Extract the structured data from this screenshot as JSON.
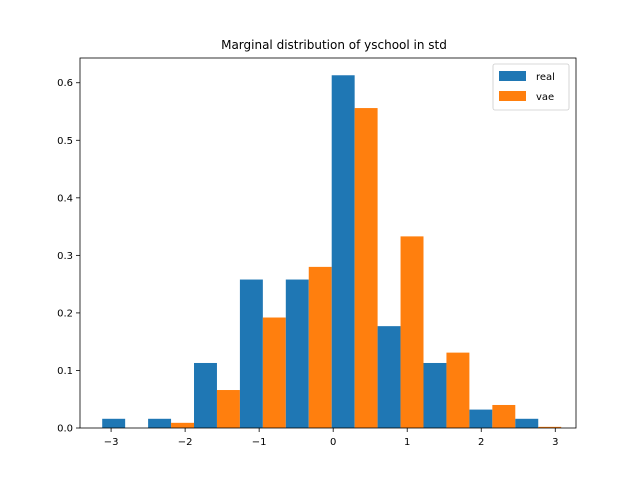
{
  "chart_data": {
    "type": "bar",
    "title": "Marginal distribution of yschool in std",
    "xlabel": "",
    "ylabel": "",
    "xlim": [
      -3.42,
      3.28
    ],
    "ylim": [
      0,
      0.643
    ],
    "xticks": [
      {
        "value": -3,
        "label": "−3"
      },
      {
        "value": -2,
        "label": "−2"
      },
      {
        "value": -1,
        "label": "−1"
      },
      {
        "value": 0,
        "label": "0"
      },
      {
        "value": 1,
        "label": "1"
      },
      {
        "value": 2,
        "label": "2"
      },
      {
        "value": 3,
        "label": "3"
      }
    ],
    "yticks": [
      {
        "value": 0.0,
        "label": "0.0"
      },
      {
        "value": 0.1,
        "label": "0.1"
      },
      {
        "value": 0.2,
        "label": "0.2"
      },
      {
        "value": 0.3,
        "label": "0.3"
      },
      {
        "value": 0.4,
        "label": "0.4"
      },
      {
        "value": 0.5,
        "label": "0.5"
      },
      {
        "value": 0.6,
        "label": "0.6"
      }
    ],
    "bin_edges": [
      -3.12,
      -2.5,
      -1.88,
      -1.26,
      -0.64,
      -0.02,
      0.6,
      1.22,
      1.84,
      2.46,
      3.08
    ],
    "legend_position": "top-right",
    "series": [
      {
        "name": "real",
        "color": "#1f77b4",
        "values": [
          0.016,
          0.016,
          0.113,
          0.258,
          0.258,
          0.613,
          0.177,
          0.113,
          0.032,
          0.016
        ]
      },
      {
        "name": "vae",
        "color": "#ff7f0e",
        "values": [
          0.0,
          0.009,
          0.066,
          0.192,
          0.28,
          0.556,
          0.333,
          0.131,
          0.04,
          0.002
        ]
      }
    ]
  }
}
